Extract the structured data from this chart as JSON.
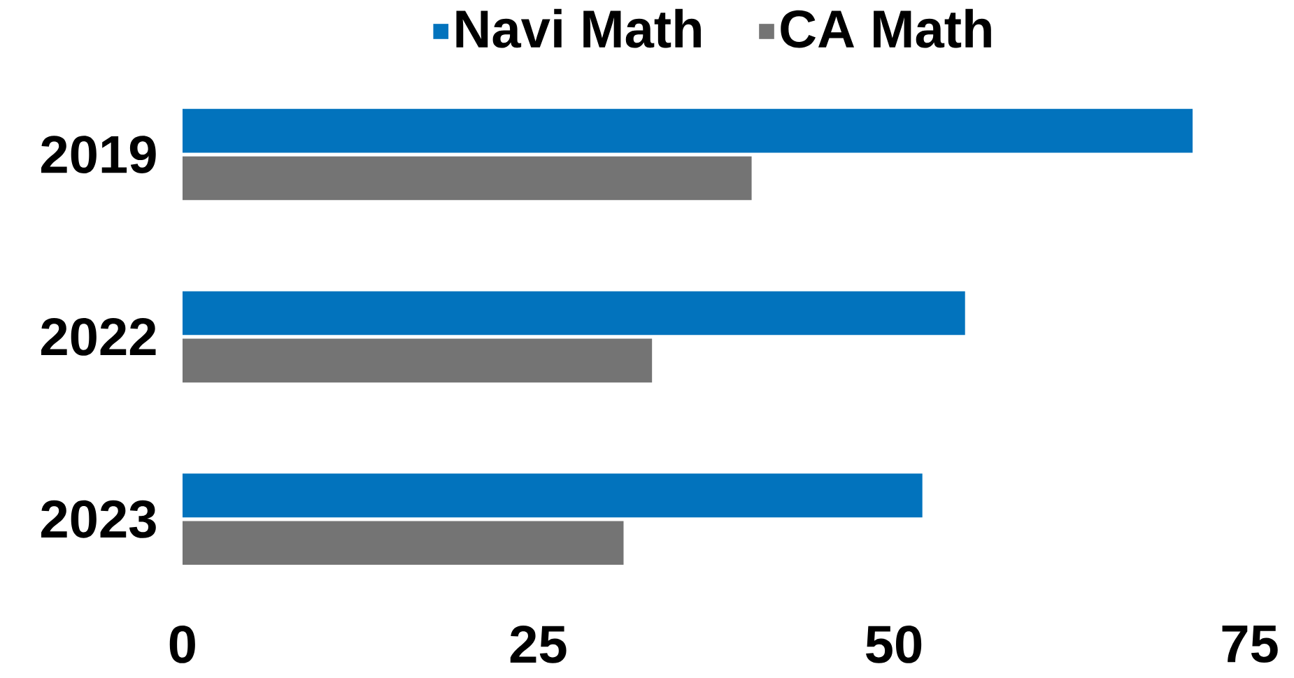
{
  "chart_data": {
    "type": "bar",
    "orientation": "horizontal",
    "categories": [
      "2019",
      "2022",
      "2023"
    ],
    "series": [
      {
        "name": "Navi Math",
        "color": "#0273bd",
        "values": [
          71,
          55,
          52
        ]
      },
      {
        "name": "CA Math",
        "color": "#747474",
        "values": [
          40,
          33,
          31
        ]
      }
    ],
    "xlim": [
      0,
      75
    ],
    "xticks": [
      0,
      25,
      50,
      75
    ],
    "legend": "top"
  }
}
